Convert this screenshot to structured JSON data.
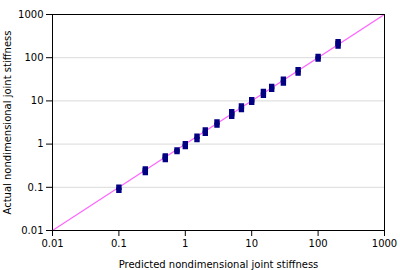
{
  "chart_data": {
    "type": "scatter",
    "title": "",
    "xlabel": "Predicted nondimensional joint stiffness",
    "ylabel": "Actual nondimensional joint stiffness",
    "log": true,
    "xlim": [
      0.01,
      1000
    ],
    "ylim": [
      0.01,
      1000
    ],
    "xticks": [
      0.01,
      0.1,
      1,
      10,
      100,
      1000
    ],
    "yticks": [
      0.01,
      0.1,
      1,
      10,
      100,
      1000
    ],
    "grid": "y",
    "series": [
      {
        "type": "line",
        "color": "#FF66FF",
        "line_style": "solid",
        "x": [
          0.01,
          1000
        ],
        "values": [
          0.01,
          1000
        ]
      },
      {
        "type": "scatter",
        "color": "#000080",
        "marker": "square",
        "x": [
          0.1,
          0.1,
          0.25,
          0.25,
          0.25,
          0.5,
          0.5,
          0.5,
          0.75,
          0.75,
          1.0,
          1.0,
          1.5,
          1.5,
          2.0,
          2.0,
          3.0,
          3.0,
          5.0,
          5.0,
          5.0,
          7.0,
          7.0,
          10.0,
          10.0,
          15.0,
          15.0,
          20.0,
          20.0,
          30.0,
          30.0,
          50.0,
          50.0,
          100.0,
          100.0,
          200.0,
          200.0,
          200.0
        ],
        "values": [
          0.085,
          0.1,
          0.22,
          0.245,
          0.265,
          0.44,
          0.5,
          0.53,
          0.67,
          0.73,
          0.88,
          1.02,
          1.28,
          1.52,
          1.78,
          2.12,
          2.75,
          3.25,
          4.4,
          5.0,
          5.6,
          6.3,
          7.6,
          9.3,
          10.6,
          13.5,
          16.5,
          18.5,
          21.5,
          26.0,
          32.0,
          44.0,
          53.0,
          93.0,
          107.0,
          185.0,
          215.0,
          235.0
        ]
      }
    ]
  }
}
